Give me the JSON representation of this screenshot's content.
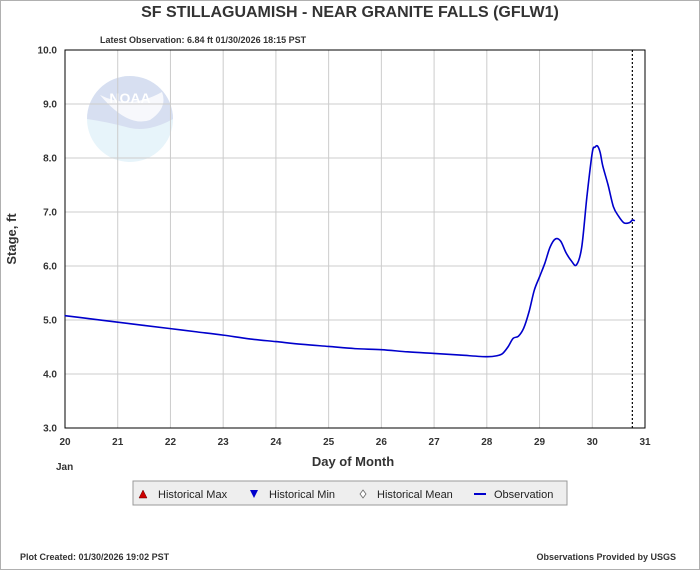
{
  "header": {
    "title": "SF STILLAGUAMISH - NEAR GRANITE FALLS  (GFLW1)",
    "latest_observation": "Latest Observation: 6.84 ft 01/30/2026 18:15 PST"
  },
  "watermark": {
    "logo_text": "NOAA"
  },
  "footer": {
    "plot_created": "Plot Created: 01/30/2026 19:02 PST",
    "provider": "Observations Provided by USGS"
  },
  "legend": {
    "items": [
      {
        "label": "Historical Max",
        "symbol": "triangle-up",
        "color": "#cc0000"
      },
      {
        "label": "Historical Min",
        "symbol": "triangle-down",
        "color": "#0000cc"
      },
      {
        "label": "Historical Mean",
        "symbol": "diamond",
        "color": "#888888"
      },
      {
        "label": "Observation",
        "symbol": "line",
        "color": "#0000cc"
      }
    ]
  },
  "chart_data": {
    "type": "line",
    "title": "SF STILLAGUAMISH - NEAR GRANITE FALLS  (GFLW1)",
    "xlabel": "Day of Month",
    "ylabel": "Stage, ft",
    "x_month_label": "Jan",
    "xlim": [
      20,
      31
    ],
    "ylim": [
      3.0,
      10.0
    ],
    "x_ticks": [
      20,
      21,
      22,
      23,
      24,
      25,
      26,
      27,
      28,
      29,
      30,
      31
    ],
    "y_ticks": [
      "3.0",
      "4.0",
      "5.0",
      "6.0",
      "7.0",
      "8.0",
      "9.0",
      "10.0"
    ],
    "grid": true,
    "series": [
      {
        "name": "Observation",
        "color": "#0000cc",
        "x": [
          20.0,
          20.5,
          21.0,
          21.5,
          22.0,
          22.5,
          23.0,
          23.5,
          24.0,
          24.5,
          25.0,
          25.5,
          26.0,
          26.5,
          27.0,
          27.5,
          28.0,
          28.2,
          28.3,
          28.4,
          28.5,
          28.6,
          28.7,
          28.8,
          28.9,
          29.0,
          29.1,
          29.2,
          29.3,
          29.4,
          29.5,
          29.6,
          29.7,
          29.8,
          29.9,
          30.0,
          30.05,
          30.1,
          30.15,
          30.2,
          30.3,
          30.4,
          30.5,
          30.6,
          30.7,
          30.76,
          30.8
        ],
        "y": [
          5.08,
          5.02,
          4.96,
          4.9,
          4.84,
          4.78,
          4.72,
          4.65,
          4.6,
          4.55,
          4.51,
          4.47,
          4.45,
          4.41,
          4.38,
          4.35,
          4.32,
          4.34,
          4.38,
          4.5,
          4.66,
          4.7,
          4.85,
          5.15,
          5.55,
          5.8,
          6.05,
          6.35,
          6.5,
          6.46,
          6.25,
          6.1,
          6.02,
          6.35,
          7.3,
          8.1,
          8.2,
          8.22,
          8.1,
          7.85,
          7.5,
          7.1,
          6.92,
          6.8,
          6.8,
          6.85,
          6.84
        ]
      }
    ],
    "latest_marker_x": 30.76
  }
}
